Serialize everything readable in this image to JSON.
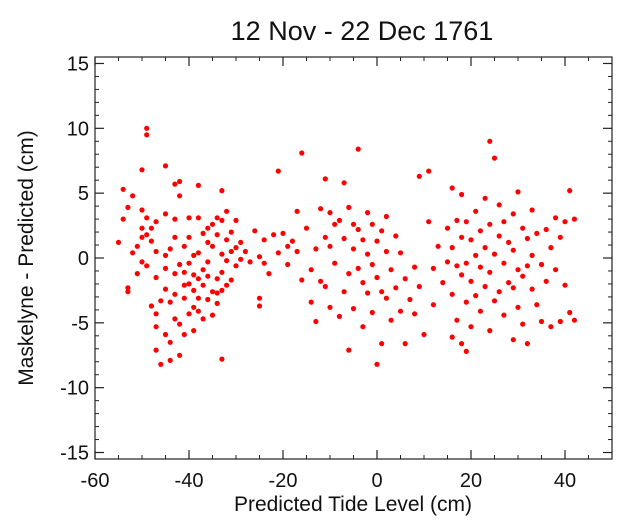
{
  "chart_data": {
    "type": "scatter",
    "title": "12 Nov -  22 Dec 1761",
    "xlabel": "Predicted Tide Level (cm)",
    "ylabel": "Maskelyne - Predicted (cm)",
    "xlim": [
      -60,
      50
    ],
    "ylim": [
      -15.5,
      15.5
    ],
    "x_ticks": [
      -60,
      -40,
      -20,
      0,
      20,
      40
    ],
    "y_ticks": [
      -15,
      -10,
      -5,
      0,
      5,
      10,
      15
    ],
    "grid": false,
    "legend": "none",
    "marker_color": "#ff0000",
    "series": [
      {
        "points": [
          [
            -55,
            1.2
          ],
          [
            -54,
            3
          ],
          [
            -54,
            5.3
          ],
          [
            -53,
            3.9
          ],
          [
            -53,
            -2.3
          ],
          [
            -53,
            -2.6
          ],
          [
            -52,
            4.8
          ],
          [
            -52,
            0.4
          ],
          [
            -51,
            -1.2
          ],
          [
            -51,
            0.9
          ],
          [
            -50,
            2.3
          ],
          [
            -50,
            6.8
          ],
          [
            -50,
            3.7
          ],
          [
            -50,
            1.6
          ],
          [
            -50,
            -0.3
          ],
          [
            -49,
            10
          ],
          [
            -49,
            9.5
          ],
          [
            -49,
            3.1
          ],
          [
            -49,
            1.8
          ],
          [
            -49,
            -0.6
          ],
          [
            -48,
            2.3
          ],
          [
            -48,
            1.3
          ],
          [
            -48,
            -3.7
          ],
          [
            -47,
            2.8
          ],
          [
            -47,
            0.5
          ],
          [
            -47,
            -1.5
          ],
          [
            -47,
            -4.3
          ],
          [
            -47,
            -5.3
          ],
          [
            -47,
            -7.1
          ],
          [
            -46,
            -3.3
          ],
          [
            -46,
            -8.2
          ],
          [
            -45,
            7.1
          ],
          [
            -45,
            3.4
          ],
          [
            -45,
            0.2
          ],
          [
            -45,
            -0.8
          ],
          [
            -45,
            -2.4
          ],
          [
            -45,
            -5.9
          ],
          [
            -44,
            0.7
          ],
          [
            -44,
            -3.4
          ],
          [
            -44,
            -6.5
          ],
          [
            -44,
            -7.9
          ],
          [
            -43,
            3
          ],
          [
            -43,
            5.7
          ],
          [
            -43,
            1.6
          ],
          [
            -43,
            -1.2
          ],
          [
            -43,
            -2.8
          ],
          [
            -43,
            -4.7
          ],
          [
            -42,
            5.9
          ],
          [
            -42,
            4.8
          ],
          [
            -42,
            -0.5
          ],
          [
            -42,
            -5.1
          ],
          [
            -42,
            -7.5
          ],
          [
            -41,
            0.9
          ],
          [
            -41,
            -1.1
          ],
          [
            -41,
            -2.1
          ],
          [
            -41,
            -3.1
          ],
          [
            -41,
            -5.9
          ],
          [
            -40,
            3.1
          ],
          [
            -40,
            1.6
          ],
          [
            -40,
            -0.4
          ],
          [
            -40,
            -2
          ],
          [
            -40,
            -4.3
          ],
          [
            -39,
            0.2
          ],
          [
            -39,
            -1.3
          ],
          [
            -39,
            -2.5
          ],
          [
            -39,
            -3.8
          ],
          [
            -39,
            -5.6
          ],
          [
            -38,
            5.6
          ],
          [
            -38,
            3.1
          ],
          [
            -38,
            0.4
          ],
          [
            -38,
            -1.6
          ],
          [
            -38,
            -3.1
          ],
          [
            -38,
            -4.1
          ],
          [
            -37,
            1.9
          ],
          [
            -37,
            -0.9
          ],
          [
            -37,
            -2.1
          ],
          [
            -37,
            -4.7
          ],
          [
            -36,
            2.3
          ],
          [
            -36,
            1.2
          ],
          [
            -36,
            -0.3
          ],
          [
            -36,
            -1.4
          ],
          [
            -36,
            -3.2
          ],
          [
            -35,
            2.6
          ],
          [
            -35,
            0.9
          ],
          [
            -35,
            -2.6
          ],
          [
            -35,
            -4.4
          ],
          [
            -34,
            3.1
          ],
          [
            -34,
            1.8
          ],
          [
            -34,
            -1.6
          ],
          [
            -34,
            -2.7
          ],
          [
            -34,
            -3.5
          ],
          [
            -33,
            5.2
          ],
          [
            -33,
            2.9
          ],
          [
            -33,
            0.3
          ],
          [
            -33,
            -1.1
          ],
          [
            -33,
            -2.5
          ],
          [
            -33,
            -7.8
          ],
          [
            -32,
            3.6
          ],
          [
            -32,
            1.4
          ],
          [
            -32,
            -0.2
          ],
          [
            -32,
            -2.1
          ],
          [
            -31,
            2
          ],
          [
            -31,
            0.5
          ],
          [
            -31,
            -1.7
          ],
          [
            -30,
            2.9
          ],
          [
            -30,
            0.8
          ],
          [
            -30,
            -0.6
          ],
          [
            -29,
            1.2
          ],
          [
            -29,
            -0.1
          ],
          [
            -28,
            0.5
          ],
          [
            -27,
            -0.3
          ],
          [
            -26,
            2.1
          ],
          [
            -25,
            0.1
          ],
          [
            -25,
            -3.1
          ],
          [
            -25,
            -3.7
          ],
          [
            -24,
            1.4
          ],
          [
            -24,
            -0.4
          ],
          [
            -23,
            -1.2
          ],
          [
            -22,
            1.8
          ],
          [
            -21,
            6.7
          ],
          [
            -21,
            0.4
          ],
          [
            -20,
            1.9
          ],
          [
            -19,
            0.9
          ],
          [
            -19,
            -0.5
          ],
          [
            -18,
            1.3
          ],
          [
            -17,
            3.6
          ],
          [
            -17,
            0.5
          ],
          [
            -16,
            8.1
          ],
          [
            -16,
            -1.7
          ],
          [
            -15,
            2.3
          ],
          [
            -14,
            -0.9
          ],
          [
            -14,
            -3.4
          ],
          [
            -13,
            0.7
          ],
          [
            -13,
            -4.9
          ],
          [
            -12,
            3.8
          ],
          [
            -12,
            -1.8
          ],
          [
            -11,
            6.1
          ],
          [
            -11,
            1.6
          ],
          [
            -11,
            -2.2
          ],
          [
            -10,
            3.5
          ],
          [
            -10,
            0.9
          ],
          [
            -10,
            -3.8
          ],
          [
            -9,
            2.6
          ],
          [
            -9,
            -0.4
          ],
          [
            -8,
            2.9
          ],
          [
            -8,
            -4.5
          ],
          [
            -7,
            5.8
          ],
          [
            -7,
            1.5
          ],
          [
            -7,
            -2.6
          ],
          [
            -6,
            3.9
          ],
          [
            -6,
            -1.2
          ],
          [
            -6,
            -7.1
          ],
          [
            -5,
            2.6
          ],
          [
            -5,
            0.7
          ],
          [
            -5,
            -3.9
          ],
          [
            -4,
            8.4
          ],
          [
            -4,
            2.2
          ],
          [
            -4,
            -0.8
          ],
          [
            -3,
            1.4
          ],
          [
            -3,
            -1.9
          ],
          [
            -3,
            -5.3
          ],
          [
            -2,
            3.5
          ],
          [
            -2,
            0.3
          ],
          [
            -2,
            -2.7
          ],
          [
            -1,
            2.6
          ],
          [
            -1,
            -0.5
          ],
          [
            -1,
            -4.2
          ],
          [
            0,
            1.3
          ],
          [
            0,
            -1.5
          ],
          [
            0,
            -8.2
          ],
          [
            1,
            2.1
          ],
          [
            1,
            -2.6
          ],
          [
            1,
            -6.6
          ],
          [
            2,
            3.2
          ],
          [
            2,
            0.5
          ],
          [
            2,
            -3.1
          ],
          [
            3,
            -0.9
          ],
          [
            3,
            -4.8
          ],
          [
            4,
            1.7
          ],
          [
            4,
            -2.3
          ],
          [
            5,
            0.4
          ],
          [
            5,
            -4.1
          ],
          [
            6,
            -1.6
          ],
          [
            6,
            -6.6
          ],
          [
            7,
            -3.2
          ],
          [
            8,
            -0.7
          ],
          [
            8,
            -4.3
          ],
          [
            9,
            6.3
          ],
          [
            9,
            -2.2
          ],
          [
            10,
            -5.9
          ],
          [
            11,
            6.7
          ],
          [
            11,
            2.8
          ],
          [
            12,
            -0.8
          ],
          [
            12,
            -3.6
          ],
          [
            13,
            0.9
          ],
          [
            14,
            -1.9
          ],
          [
            15,
            2.3
          ],
          [
            15,
            -0.3
          ],
          [
            16,
            5.4
          ],
          [
            16,
            0.8
          ],
          [
            16,
            -2.8
          ],
          [
            16,
            -6.1
          ],
          [
            17,
            2.9
          ],
          [
            17,
            -0.6
          ],
          [
            17,
            -4.8
          ],
          [
            18,
            4.9
          ],
          [
            18,
            1.6
          ],
          [
            18,
            -1.3
          ],
          [
            18,
            -6.6
          ],
          [
            19,
            2.8
          ],
          [
            19,
            -0.4
          ],
          [
            19,
            -3.4
          ],
          [
            19,
            -7.2
          ],
          [
            20,
            1.4
          ],
          [
            20,
            -1.8
          ],
          [
            20,
            -5.3
          ],
          [
            21,
            3.6
          ],
          [
            21,
            0.2
          ],
          [
            21,
            -2.9
          ],
          [
            22,
            2.1
          ],
          [
            22,
            -0.7
          ],
          [
            22,
            -4.1
          ],
          [
            23,
            4.6
          ],
          [
            23,
            0.8
          ],
          [
            23,
            -2.2
          ],
          [
            24,
            9
          ],
          [
            24,
            2.6
          ],
          [
            24,
            -1.1
          ],
          [
            24,
            -5.6
          ],
          [
            25,
            7.7
          ],
          [
            25,
            0.3
          ],
          [
            25,
            -3.3
          ],
          [
            26,
            4.1
          ],
          [
            26,
            1.7
          ],
          [
            26,
            -2.6
          ],
          [
            27,
            2.8
          ],
          [
            27,
            -0.4
          ],
          [
            27,
            -4.4
          ],
          [
            28,
            1.2
          ],
          [
            28,
            -1.9
          ],
          [
            29,
            3.4
          ],
          [
            29,
            0.6
          ],
          [
            29,
            -2.3
          ],
          [
            29,
            -6.3
          ],
          [
            30,
            5.1
          ],
          [
            30,
            -0.9
          ],
          [
            30,
            -3.8
          ],
          [
            31,
            2.3
          ],
          [
            31,
            -1.4
          ],
          [
            31,
            -5.1
          ],
          [
            32,
            1.5
          ],
          [
            32,
            -0.6
          ],
          [
            32,
            -6.6
          ],
          [
            33,
            3.7
          ],
          [
            33,
            0.2
          ],
          [
            33,
            -2.4
          ],
          [
            34,
            1.9
          ],
          [
            34,
            -3.6
          ],
          [
            35,
            -0.5
          ],
          [
            35,
            -4.9
          ],
          [
            36,
            2.2
          ],
          [
            36,
            -1.8
          ],
          [
            37,
            0.8
          ],
          [
            37,
            -5.3
          ],
          [
            38,
            3.1
          ],
          [
            38,
            -0.9
          ],
          [
            39,
            1.6
          ],
          [
            39,
            -4.9
          ],
          [
            40,
            2.8
          ],
          [
            40,
            -2.1
          ],
          [
            41,
            5.2
          ],
          [
            41,
            -4.2
          ],
          [
            42,
            3
          ],
          [
            42,
            -4.8
          ]
        ]
      }
    ]
  }
}
